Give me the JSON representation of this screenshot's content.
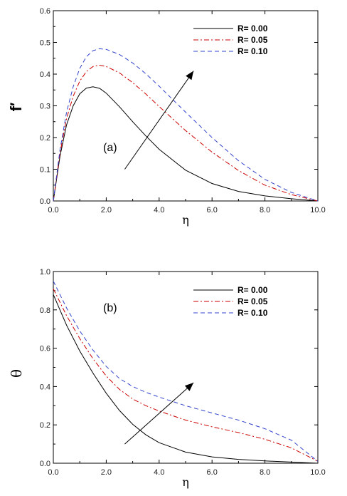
{
  "chart_data": [
    {
      "type": "line",
      "panel_label": "(a)",
      "xlabel": "η",
      "ylabel": "f′",
      "xlim": [
        0,
        10
      ],
      "ylim": [
        0,
        0.6
      ],
      "xticks": [
        "0.0",
        "2.0",
        "4.0",
        "6.0",
        "8.0",
        "10.0"
      ],
      "yticks": [
        "0.0",
        "0.1",
        "0.2",
        "0.3",
        "0.4",
        "0.5",
        "0.6"
      ],
      "legend_position": "top-right",
      "grid": false,
      "trend_arrow": {
        "from": [
          2.7,
          0.1
        ],
        "to": [
          5.3,
          0.41
        ]
      },
      "x": [
        0,
        0.25,
        0.5,
        0.75,
        1.0,
        1.25,
        1.5,
        1.75,
        2.0,
        2.5,
        3.0,
        3.5,
        4.0,
        5.0,
        6.0,
        7.0,
        8.0,
        9.0,
        10.0
      ],
      "series": [
        {
          "name": "R= 0.00",
          "color": "#000000",
          "dash": "solid",
          "values": [
            0,
            0.14,
            0.24,
            0.3,
            0.338,
            0.356,
            0.36,
            0.355,
            0.34,
            0.297,
            0.25,
            0.205,
            0.163,
            0.097,
            0.055,
            0.03,
            0.016,
            0.007,
            0
          ]
        },
        {
          "name": "R= 0.05",
          "color": "#cc0000",
          "dash": "dashdot",
          "values": [
            0,
            0.15,
            0.26,
            0.33,
            0.378,
            0.408,
            0.424,
            0.428,
            0.424,
            0.404,
            0.373,
            0.337,
            0.298,
            0.222,
            0.154,
            0.096,
            0.05,
            0.02,
            0
          ]
        },
        {
          "name": "R= 0.10",
          "color": "#3344cc",
          "dash": "dashed",
          "values": [
            0,
            0.16,
            0.28,
            0.36,
            0.418,
            0.455,
            0.474,
            0.48,
            0.478,
            0.462,
            0.435,
            0.401,
            0.362,
            0.28,
            0.2,
            0.127,
            0.068,
            0.027,
            0
          ]
        }
      ]
    },
    {
      "type": "line",
      "panel_label": "(b)",
      "xlabel": "η",
      "ylabel": "θ",
      "xlim": [
        0,
        10
      ],
      "ylim": [
        0,
        1.0
      ],
      "xticks": [
        "0.0",
        "2.0",
        "4.0",
        "6.0",
        "8.0",
        "10.0"
      ],
      "yticks": [
        "0.0",
        "0.2",
        "0.4",
        "0.6",
        "0.8",
        "1.0"
      ],
      "legend_position": "top-right",
      "grid": false,
      "trend_arrow": {
        "from": [
          2.7,
          0.1
        ],
        "to": [
          5.3,
          0.42
        ]
      },
      "x": [
        0,
        0.5,
        1.0,
        1.5,
        2.0,
        2.5,
        3.0,
        3.5,
        4.0,
        5.0,
        6.0,
        7.0,
        8.0,
        9.0,
        10.0
      ],
      "series": [
        {
          "name": "R= 0.00",
          "color": "#000000",
          "dash": "solid",
          "values": [
            0.88,
            0.72,
            0.585,
            0.47,
            0.365,
            0.275,
            0.203,
            0.148,
            0.107,
            0.058,
            0.033,
            0.02,
            0.012,
            0.006,
            0
          ]
        },
        {
          "name": "R= 0.05",
          "color": "#cc0000",
          "dash": "dashdot",
          "values": [
            0.91,
            0.77,
            0.65,
            0.545,
            0.455,
            0.385,
            0.335,
            0.3,
            0.272,
            0.225,
            0.19,
            0.16,
            0.125,
            0.08,
            0.01
          ]
        },
        {
          "name": "R= 0.10",
          "color": "#3344cc",
          "dash": "dashed",
          "values": [
            0.95,
            0.81,
            0.69,
            0.59,
            0.505,
            0.442,
            0.4,
            0.37,
            0.345,
            0.3,
            0.262,
            0.225,
            0.18,
            0.12,
            0.01
          ]
        }
      ]
    }
  ]
}
